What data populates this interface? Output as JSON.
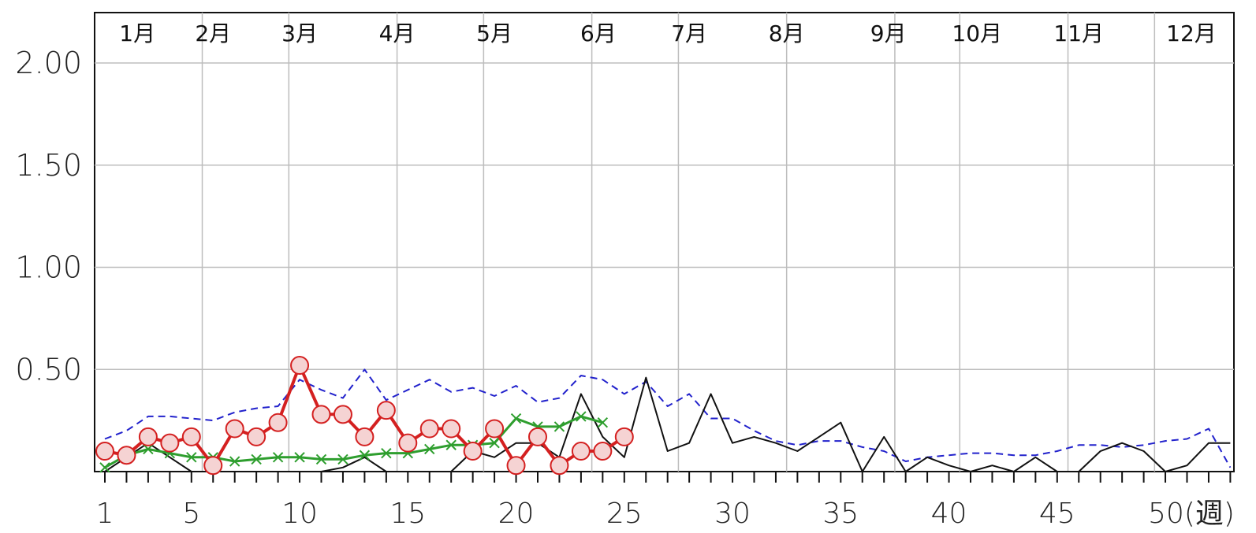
{
  "chart_data": {
    "type": "line",
    "ylim": [
      0,
      2.0
    ],
    "y_ticks": [
      "2.00",
      "1.50",
      "1.00",
      "0.50"
    ],
    "y_tick_values": [
      2.0,
      1.5,
      1.0,
      0.5
    ],
    "x_range": [
      1,
      53
    ],
    "x_ticks": [
      "1",
      "5",
      "10",
      "15",
      "20",
      "25",
      "30",
      "35",
      "40",
      "45",
      "50(週)"
    ],
    "x_tick_values": [
      1,
      5,
      10,
      15,
      20,
      25,
      30,
      35,
      40,
      45,
      50
    ],
    "grid": true,
    "months": [
      {
        "label": "1月",
        "week": 2.5
      },
      {
        "label": "2月",
        "week": 6.0
      },
      {
        "label": "3月",
        "week": 10.0
      },
      {
        "label": "4月",
        "week": 14.5
      },
      {
        "label": "5月",
        "week": 19.0
      },
      {
        "label": "6月",
        "week": 23.8
      },
      {
        "label": "7月",
        "week": 28.0
      },
      {
        "label": "8月",
        "week": 32.5
      },
      {
        "label": "9月",
        "week": 37.2
      },
      {
        "label": "10月",
        "week": 41.3
      },
      {
        "label": "11月",
        "week": 46.0
      },
      {
        "label": "12月",
        "week": 51.2
      }
    ],
    "month_boundaries": [
      5,
      9,
      14,
      18,
      23,
      27,
      32,
      37,
      40,
      45,
      49
    ],
    "series": [
      {
        "style": "red-circles",
        "color": "#d42020",
        "marker_fill": "#f5d3d3",
        "x": [
          1,
          2,
          3,
          4,
          5,
          6,
          7,
          8,
          9,
          10,
          11,
          12,
          13,
          14,
          15,
          16,
          17,
          18,
          19,
          20,
          21,
          22,
          23,
          24,
          25
        ],
        "values": [
          0.1,
          0.08,
          0.17,
          0.14,
          0.17,
          0.03,
          0.21,
          0.17,
          0.24,
          0.52,
          0.28,
          0.28,
          0.17,
          0.3,
          0.14,
          0.21,
          0.21,
          0.1,
          0.21,
          0.03,
          0.17,
          0.03,
          0.1,
          0.1,
          0.17
        ]
      },
      {
        "style": "green-x",
        "color": "#2e9e2e",
        "x": [
          1,
          2,
          3,
          4,
          5,
          6,
          7,
          8,
          9,
          10,
          11,
          12,
          13,
          14,
          15,
          16,
          17,
          18,
          19,
          20,
          21,
          22,
          23,
          24
        ],
        "values": [
          0.02,
          0.08,
          0.11,
          0.09,
          0.07,
          0.07,
          0.05,
          0.06,
          0.07,
          0.07,
          0.06,
          0.06,
          0.08,
          0.09,
          0.09,
          0.11,
          0.13,
          0.13,
          0.14,
          0.26,
          0.22,
          0.22,
          0.27,
          0.24
        ]
      },
      {
        "style": "blue-dashed",
        "color": "#2222cc",
        "x": [
          1,
          2,
          3,
          4,
          5,
          6,
          7,
          8,
          9,
          10,
          11,
          12,
          13,
          14,
          15,
          16,
          17,
          18,
          19,
          20,
          21,
          22,
          23,
          24,
          25,
          26,
          27,
          28,
          29,
          30,
          31,
          32,
          33,
          34,
          35,
          36,
          37,
          38,
          39,
          40,
          41,
          42,
          43,
          44,
          45,
          46,
          47,
          48,
          49,
          50,
          51,
          52,
          53
        ],
        "values": [
          0.16,
          0.2,
          0.27,
          0.27,
          0.26,
          0.25,
          0.29,
          0.31,
          0.32,
          0.45,
          0.4,
          0.36,
          0.5,
          0.35,
          0.4,
          0.45,
          0.39,
          0.41,
          0.37,
          0.42,
          0.34,
          0.36,
          0.47,
          0.45,
          0.38,
          0.44,
          0.32,
          0.38,
          0.26,
          0.26,
          0.2,
          0.15,
          0.13,
          0.15,
          0.15,
          0.12,
          0.1,
          0.05,
          0.07,
          0.08,
          0.09,
          0.09,
          0.08,
          0.08,
          0.1,
          0.13,
          0.13,
          0.12,
          0.13,
          0.15,
          0.16,
          0.21,
          0.02
        ]
      },
      {
        "style": "black-solid",
        "color": "#111111",
        "x": [
          1,
          2,
          3,
          4,
          5,
          6,
          7,
          8,
          9,
          10,
          11,
          12,
          13,
          14,
          15,
          16,
          17,
          18,
          19,
          20,
          21,
          22,
          23,
          24,
          25,
          26,
          27,
          28,
          29,
          30,
          31,
          32,
          33,
          34,
          35,
          36,
          37,
          38,
          39,
          40,
          41,
          42,
          43,
          44,
          45,
          46,
          47,
          48,
          49,
          50,
          51,
          52,
          53
        ],
        "values": [
          0.0,
          0.07,
          0.14,
          0.07,
          0.0,
          0.0,
          0.0,
          0.0,
          0.0,
          0.0,
          0.0,
          0.02,
          0.07,
          0.0,
          0.0,
          0.0,
          0.0,
          0.1,
          0.07,
          0.14,
          0.14,
          0.07,
          0.38,
          0.17,
          0.07,
          0.46,
          0.1,
          0.14,
          0.38,
          0.14,
          0.17,
          0.14,
          0.1,
          0.17,
          0.24,
          0.0,
          0.17,
          0.0,
          0.07,
          0.03,
          0.0,
          0.03,
          0.0,
          0.07,
          0.0,
          0.0,
          0.1,
          0.14,
          0.1,
          0.0,
          0.03,
          0.14,
          0.14
        ]
      }
    ]
  }
}
